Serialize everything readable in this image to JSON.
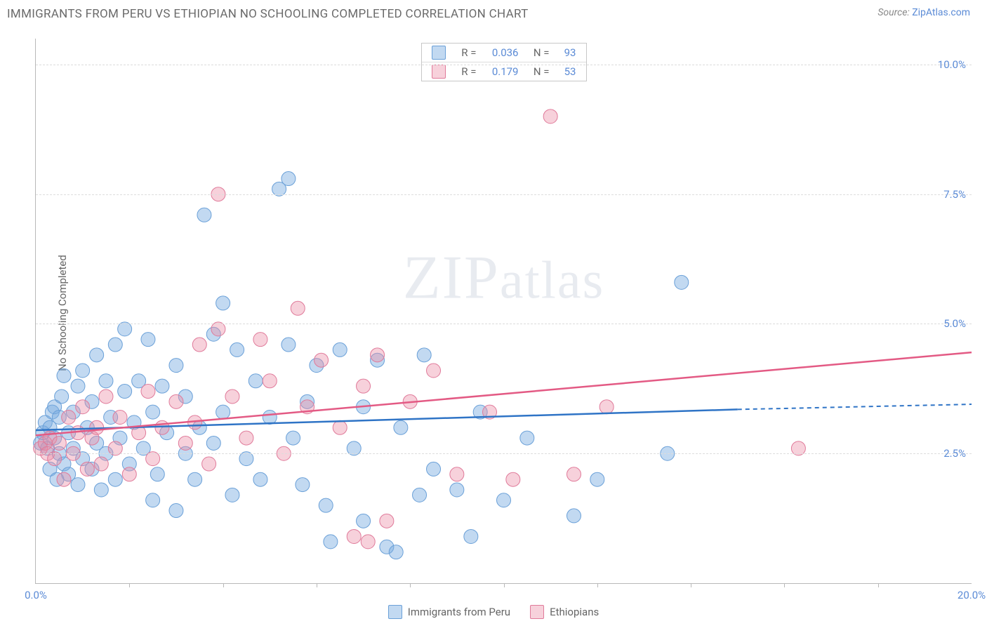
{
  "header": {
    "title": "IMMIGRANTS FROM PERU VS ETHIOPIAN NO SCHOOLING COMPLETED CORRELATION CHART",
    "source_prefix": "Source: ",
    "source_link": "ZipAtlas.com"
  },
  "chart": {
    "type": "scatter",
    "ylabel": "No Schooling Completed",
    "watermark": {
      "z": "Z",
      "i": "I",
      "p": "P",
      "rest": "atlas"
    },
    "xlim": [
      0,
      20
    ],
    "ylim": [
      0,
      10.5
    ],
    "yticks": [
      {
        "v": 2.5,
        "label": "2.5%"
      },
      {
        "v": 5.0,
        "label": "5.0%"
      },
      {
        "v": 7.5,
        "label": "7.5%"
      },
      {
        "v": 10.0,
        "label": "10.0%"
      }
    ],
    "xticks": [
      {
        "v": 0,
        "label": "0.0%"
      },
      {
        "v": 20,
        "label": "20.0%"
      }
    ],
    "xminor": [
      2,
      4,
      6,
      8,
      10,
      12,
      14,
      16,
      18
    ],
    "grid_color": "#dcdcdc",
    "background_color": "#ffffff",
    "series": [
      {
        "key": "peru",
        "legend_label": "Immigrants from Peru",
        "color_fill": "rgba(120,170,225,0.45)",
        "color_stroke": "#6aa0d8",
        "line_color": "#2f74c6",
        "marker_radius": 10,
        "reg": {
          "x0": 0,
          "y0": 2.95,
          "x1_solid": 15,
          "y1_solid": 3.35,
          "x1": 20,
          "y1": 3.45
        },
        "R": "0.036",
        "N": "93",
        "points": [
          [
            0.1,
            2.7
          ],
          [
            0.15,
            2.9
          ],
          [
            0.2,
            3.1
          ],
          [
            0.25,
            2.6
          ],
          [
            0.3,
            3.0
          ],
          [
            0.3,
            2.2
          ],
          [
            0.35,
            3.3
          ],
          [
            0.4,
            2.8
          ],
          [
            0.4,
            3.4
          ],
          [
            0.45,
            2.0
          ],
          [
            0.5,
            3.2
          ],
          [
            0.5,
            2.5
          ],
          [
            0.55,
            3.6
          ],
          [
            0.6,
            2.3
          ],
          [
            0.6,
            4.0
          ],
          [
            0.7,
            2.9
          ],
          [
            0.7,
            2.1
          ],
          [
            0.8,
            3.3
          ],
          [
            0.8,
            2.6
          ],
          [
            0.9,
            1.9
          ],
          [
            0.9,
            3.8
          ],
          [
            1.0,
            2.4
          ],
          [
            1.0,
            4.1
          ],
          [
            1.1,
            3.0
          ],
          [
            1.2,
            2.2
          ],
          [
            1.2,
            3.5
          ],
          [
            1.3,
            2.7
          ],
          [
            1.3,
            4.4
          ],
          [
            1.4,
            1.8
          ],
          [
            1.5,
            3.9
          ],
          [
            1.5,
            2.5
          ],
          [
            1.6,
            3.2
          ],
          [
            1.7,
            4.6
          ],
          [
            1.7,
            2.0
          ],
          [
            1.8,
            2.8
          ],
          [
            1.9,
            3.7
          ],
          [
            1.9,
            4.9
          ],
          [
            2.0,
            2.3
          ],
          [
            2.1,
            3.1
          ],
          [
            2.2,
            3.9
          ],
          [
            2.3,
            2.6
          ],
          [
            2.4,
            4.7
          ],
          [
            2.5,
            1.6
          ],
          [
            2.5,
            3.3
          ],
          [
            2.6,
            2.1
          ],
          [
            2.7,
            3.8
          ],
          [
            2.8,
            2.9
          ],
          [
            3.0,
            4.2
          ],
          [
            3.0,
            1.4
          ],
          [
            3.2,
            2.5
          ],
          [
            3.2,
            3.6
          ],
          [
            3.4,
            2.0
          ],
          [
            3.5,
            3.0
          ],
          [
            3.6,
            7.1
          ],
          [
            3.8,
            4.8
          ],
          [
            3.8,
            2.7
          ],
          [
            4.0,
            5.4
          ],
          [
            4.0,
            3.3
          ],
          [
            4.2,
            1.7
          ],
          [
            4.3,
            4.5
          ],
          [
            4.5,
            2.4
          ],
          [
            4.7,
            3.9
          ],
          [
            4.8,
            2.0
          ],
          [
            5.0,
            3.2
          ],
          [
            5.2,
            7.6
          ],
          [
            5.4,
            4.6
          ],
          [
            5.4,
            7.8
          ],
          [
            5.5,
            2.8
          ],
          [
            5.7,
            1.9
          ],
          [
            5.8,
            3.5
          ],
          [
            6.0,
            4.2
          ],
          [
            6.2,
            1.5
          ],
          [
            6.3,
            0.8
          ],
          [
            6.5,
            4.5
          ],
          [
            6.8,
            2.6
          ],
          [
            7.0,
            1.2
          ],
          [
            7.0,
            3.4
          ],
          [
            7.3,
            4.3
          ],
          [
            7.5,
            0.7
          ],
          [
            7.7,
            0.6
          ],
          [
            7.8,
            3.0
          ],
          [
            8.2,
            1.7
          ],
          [
            8.3,
            4.4
          ],
          [
            8.5,
            2.2
          ],
          [
            9.0,
            1.8
          ],
          [
            9.3,
            0.9
          ],
          [
            9.5,
            3.3
          ],
          [
            10.0,
            1.6
          ],
          [
            10.5,
            2.8
          ],
          [
            11.5,
            1.3
          ],
          [
            12.0,
            2.0
          ],
          [
            13.5,
            2.5
          ],
          [
            13.8,
            5.8
          ]
        ]
      },
      {
        "key": "ethiopians",
        "legend_label": "Ethiopians",
        "color_fill": "rgba(235,140,165,0.40)",
        "color_stroke": "#e07a9a",
        "line_color": "#e35a84",
        "marker_radius": 10,
        "reg": {
          "x0": 0,
          "y0": 2.85,
          "x1_solid": 20,
          "y1_solid": 4.45,
          "x1": 20,
          "y1": 4.45
        },
        "R": "0.179",
        "N": "53",
        "points": [
          [
            0.1,
            2.6
          ],
          [
            0.2,
            2.7
          ],
          [
            0.25,
            2.5
          ],
          [
            0.3,
            2.8
          ],
          [
            0.4,
            2.4
          ],
          [
            0.5,
            2.7
          ],
          [
            0.6,
            2.0
          ],
          [
            0.7,
            3.2
          ],
          [
            0.8,
            2.5
          ],
          [
            0.9,
            2.9
          ],
          [
            1.0,
            3.4
          ],
          [
            1.1,
            2.2
          ],
          [
            1.2,
            2.8
          ],
          [
            1.3,
            3.0
          ],
          [
            1.4,
            2.3
          ],
          [
            1.5,
            3.6
          ],
          [
            1.7,
            2.6
          ],
          [
            1.8,
            3.2
          ],
          [
            2.0,
            2.1
          ],
          [
            2.2,
            2.9
          ],
          [
            2.4,
            3.7
          ],
          [
            2.5,
            2.4
          ],
          [
            2.7,
            3.0
          ],
          [
            3.0,
            3.5
          ],
          [
            3.2,
            2.7
          ],
          [
            3.4,
            3.1
          ],
          [
            3.5,
            4.6
          ],
          [
            3.7,
            2.3
          ],
          [
            3.9,
            4.9
          ],
          [
            3.9,
            7.5
          ],
          [
            4.2,
            3.6
          ],
          [
            4.5,
            2.8
          ],
          [
            4.8,
            4.7
          ],
          [
            5.0,
            3.9
          ],
          [
            5.3,
            2.5
          ],
          [
            5.6,
            5.3
          ],
          [
            5.8,
            3.4
          ],
          [
            6.1,
            4.3
          ],
          [
            6.5,
            3.0
          ],
          [
            6.8,
            0.9
          ],
          [
            7.0,
            3.8
          ],
          [
            7.1,
            0.8
          ],
          [
            7.3,
            4.4
          ],
          [
            7.5,
            1.2
          ],
          [
            8.0,
            3.5
          ],
          [
            8.5,
            4.1
          ],
          [
            9.0,
            2.1
          ],
          [
            9.7,
            3.3
          ],
          [
            10.2,
            2.0
          ],
          [
            11.0,
            9.0
          ],
          [
            11.5,
            2.1
          ],
          [
            12.2,
            3.4
          ],
          [
            16.3,
            2.6
          ]
        ]
      }
    ]
  }
}
